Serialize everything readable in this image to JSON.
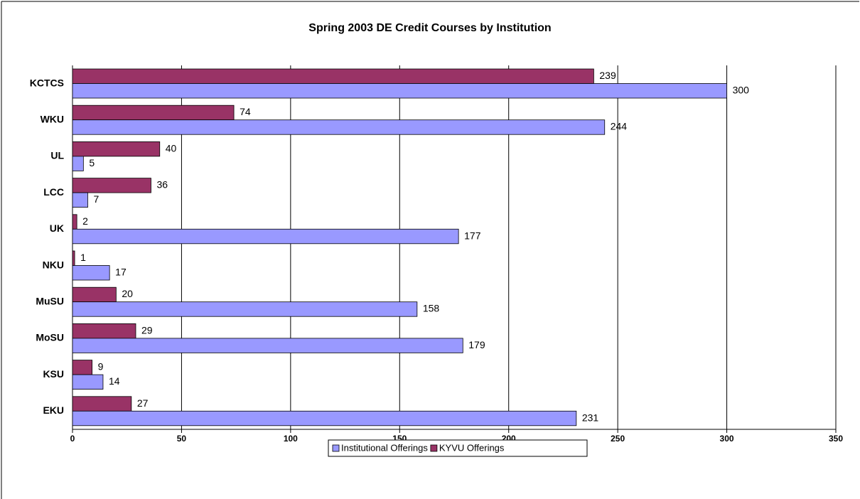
{
  "chart_data": {
    "type": "hbar",
    "title": "Spring 2003 DE Credit Courses by Institution",
    "categories": [
      "EKU",
      "KSU",
      "MoSU",
      "MuSU",
      "NKU",
      "UK",
      "LCC",
      "UL",
      "WKU",
      "KCTCS"
    ],
    "series": [
      {
        "name": "Institutional Offerings",
        "color": "#9999ff",
        "values": [
          231,
          14,
          179,
          158,
          17,
          177,
          7,
          5,
          244,
          300
        ]
      },
      {
        "name": "KYVU Offerings",
        "color": "#993366",
        "values": [
          27,
          9,
          29,
          20,
          1,
          2,
          36,
          40,
          74,
          239
        ]
      }
    ],
    "xlim": [
      0,
      350
    ],
    "xticks": [
      0,
      50,
      100,
      150,
      200,
      250,
      300,
      350
    ],
    "grid": true,
    "legend": "bottom"
  }
}
